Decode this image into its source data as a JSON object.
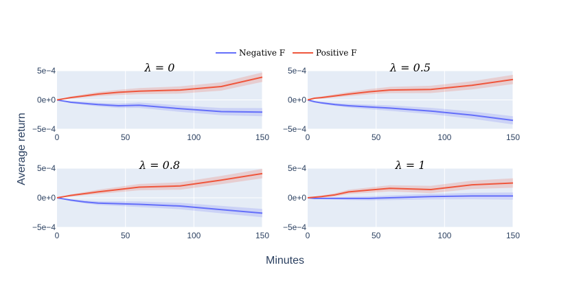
{
  "chart_data": {
    "type": "line",
    "ylabel": "Average return",
    "xlabel": "Minutes",
    "legend": {
      "placement": "top-center",
      "entries": [
        {
          "name": "Negative F",
          "color": "#636efa"
        },
        {
          "name": "Positive F",
          "color": "#ef553b"
        }
      ]
    },
    "colors": {
      "plot_bg": "#e5ecf6",
      "grid": "#ffffff",
      "negative": "#636efa",
      "positive": "#ef553b",
      "negative_band": "rgba(99,110,250,0.2)",
      "positive_band": "rgba(239,85,59,0.2)",
      "text": "#2a3f5f"
    },
    "xlim": [
      0,
      150
    ],
    "ylim": [
      -0.0005,
      0.0005
    ],
    "x_ticks": [
      0,
      50,
      100,
      150
    ],
    "x_tick_labels": [
      "0",
      "50",
      "100",
      "150"
    ],
    "y_ticks": [
      -0.0005,
      0,
      0.0005
    ],
    "y_tick_labels": [
      "−5e−4",
      "0e+0",
      "5e−4"
    ],
    "panels": [
      {
        "title": "λ = 0",
        "x": [
          0,
          5,
          10,
          20,
          30,
          45,
          60,
          90,
          120,
          150
        ],
        "series": [
          {
            "name": "Negative F",
            "values": [
              0,
              -2e-05,
              -4e-05,
              -6e-05,
              -8e-05,
              -0.0001,
              -9e-05,
              -0.00015,
              -0.0002,
              -0.00021
            ],
            "band": 7e-05
          },
          {
            "name": "Positive F",
            "values": [
              0,
              2e-05,
              4e-05,
              7e-05,
              0.0001,
              0.00013,
              0.00015,
              0.00017,
              0.00023,
              0.00039
            ],
            "band": 8e-05
          }
        ]
      },
      {
        "title": "λ = 0.5",
        "x": [
          0,
          5,
          10,
          20,
          30,
          45,
          60,
          90,
          120,
          150
        ],
        "series": [
          {
            "name": "Negative F",
            "values": [
              0,
              -3e-05,
              -5e-05,
              -8e-05,
              -0.0001,
              -0.00012,
              -0.00014,
              -0.00019,
              -0.00026,
              -0.00035
            ],
            "band": 7e-05
          },
          {
            "name": "Positive F",
            "values": [
              0,
              3e-05,
              4e-05,
              7e-05,
              0.0001,
              0.00014,
              0.00017,
              0.00018,
              0.00025,
              0.00035
            ],
            "band": 8e-05
          }
        ]
      },
      {
        "title": "λ = 0.8",
        "x": [
          0,
          5,
          10,
          20,
          30,
          45,
          60,
          90,
          120,
          150
        ],
        "series": [
          {
            "name": "Negative F",
            "values": [
              0,
              -2e-05,
              -4e-05,
              -7e-05,
              -9e-05,
              -0.0001,
              -0.00011,
              -0.00014,
              -0.0002,
              -0.00026
            ],
            "band": 7e-05
          },
          {
            "name": "Positive F",
            "values": [
              0,
              2e-05,
              4e-05,
              7e-05,
              0.0001,
              0.00014,
              0.00018,
              0.0002,
              0.0003,
              0.00041
            ],
            "band": 8e-05
          }
        ]
      },
      {
        "title": "λ = 1",
        "x": [
          0,
          5,
          10,
          20,
          30,
          45,
          60,
          90,
          120,
          150
        ],
        "series": [
          {
            "name": "Negative F",
            "values": [
              0,
              -1e-05,
              -1e-05,
              -1e-05,
              -1e-05,
              -1e-05,
              0,
              2e-05,
              3e-05,
              3e-05
            ],
            "band": 6e-05
          },
          {
            "name": "Positive F",
            "values": [
              0,
              1e-05,
              2e-05,
              5e-05,
              0.0001,
              0.00013,
              0.00016,
              0.00014,
              0.00022,
              0.00025
            ],
            "band": 8e-05
          }
        ]
      }
    ]
  }
}
